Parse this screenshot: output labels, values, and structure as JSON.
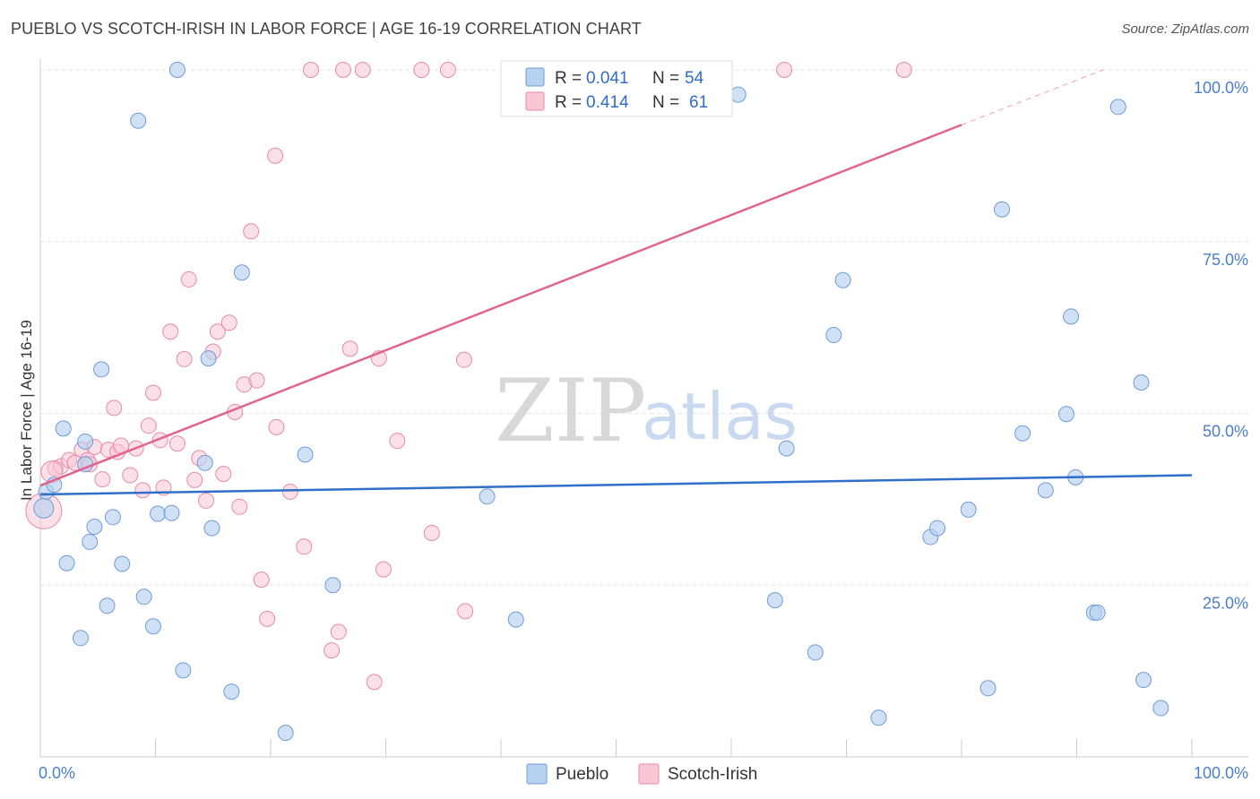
{
  "header": {
    "title": "PUEBLO VS SCOTCH-IRISH IN LABOR FORCE | AGE 16-19 CORRELATION CHART",
    "source": "Source: ZipAtlas.com"
  },
  "watermark": {
    "zip": "ZIP",
    "atlas": "atlas"
  },
  "colors": {
    "pueblo_fill": "#b7d1f0",
    "pueblo_stroke": "#6f9bd6",
    "pueblo_line": "#2e6fc9",
    "scotch_fill": "#f8c6d5",
    "scotch_stroke": "#e88aa6",
    "scotch_line": "#e2638e"
  },
  "legend": {
    "series": [
      {
        "r_label": "R = ",
        "r_value": "0.041",
        "n_label": "N = ",
        "n_value": "54"
      },
      {
        "r_label": "R = ",
        "r_value": "0.414",
        "n_label": "N = ",
        "n_value": "61"
      }
    ]
  },
  "chart_data": {
    "type": "scatter",
    "title": "PUEBLO VS SCOTCH-IRISH IN LABOR FORCE | AGE 16-19 CORRELATION CHART",
    "xlabel": "",
    "ylabel": "In Labor Force | Age 16-19",
    "xlim": [
      0,
      100
    ],
    "ylim": [
      0,
      100
    ],
    "x_tick_labels": [
      "0.0%",
      "100.0%"
    ],
    "y_ticks": [
      25,
      50,
      75,
      100
    ],
    "y_tick_labels": [
      "25.0%",
      "50.0%",
      "75.0%",
      "100.0%"
    ],
    "grid": true,
    "series": [
      {
        "name": "Pueblo",
        "r": 0.041,
        "n": 54,
        "trend": {
          "x0": 0,
          "y0": 38.2,
          "x1": 100,
          "y1": 41.0
        },
        "points": [
          [
            0.3,
            36.2
          ],
          [
            0.5,
            38.6
          ],
          [
            1.2,
            39.6
          ],
          [
            2.0,
            47.8
          ],
          [
            2.3,
            28.2
          ],
          [
            3.5,
            17.3
          ],
          [
            3.9,
            42.6
          ],
          [
            3.9,
            45.9
          ],
          [
            4.3,
            31.3
          ],
          [
            4.7,
            33.5
          ],
          [
            5.3,
            56.4
          ],
          [
            5.8,
            22.0
          ],
          [
            6.3,
            34.9
          ],
          [
            7.1,
            28.1
          ],
          [
            8.5,
            92.6
          ],
          [
            9.0,
            23.3
          ],
          [
            9.8,
            19.0
          ],
          [
            10.2,
            35.4
          ],
          [
            11.4,
            35.5
          ],
          [
            11.9,
            100.0
          ],
          [
            12.4,
            12.6
          ],
          [
            14.3,
            42.8
          ],
          [
            14.6,
            58.0
          ],
          [
            14.9,
            33.3
          ],
          [
            16.6,
            9.5
          ],
          [
            17.5,
            70.5
          ],
          [
            21.3,
            3.5
          ],
          [
            23.0,
            44.0
          ],
          [
            25.4,
            25.0
          ],
          [
            38.8,
            37.9
          ],
          [
            41.3,
            20.0
          ],
          [
            60.6,
            96.4
          ],
          [
            63.8,
            22.8
          ],
          [
            64.8,
            44.9
          ],
          [
            67.3,
            15.2
          ],
          [
            68.9,
            61.4
          ],
          [
            69.7,
            69.4
          ],
          [
            72.8,
            5.7
          ],
          [
            77.3,
            32.0
          ],
          [
            77.9,
            33.3
          ],
          [
            80.6,
            36.0
          ],
          [
            82.3,
            10.0
          ],
          [
            83.5,
            79.7
          ],
          [
            85.3,
            47.1
          ],
          [
            87.3,
            38.8
          ],
          [
            89.1,
            49.9
          ],
          [
            89.5,
            64.1
          ],
          [
            89.9,
            40.7
          ],
          [
            91.5,
            21.0
          ],
          [
            91.8,
            21.0
          ],
          [
            93.6,
            94.6
          ],
          [
            95.6,
            54.5
          ],
          [
            95.8,
            11.2
          ],
          [
            97.3,
            7.1
          ]
        ]
      },
      {
        "name": "Scotch-Irish",
        "r": 0.414,
        "n": 61,
        "trend": {
          "x0": 0,
          "y0": 39.5,
          "x1": 80,
          "y1": 92.0,
          "dashed_to_x": 100,
          "dashed_to_y": 105.0
        },
        "points": [
          [
            0.3,
            35.8
          ],
          [
            1.3,
            42.0
          ],
          [
            1.8,
            42.3
          ],
          [
            2.5,
            43.2
          ],
          [
            3.0,
            42.8
          ],
          [
            3.6,
            44.7
          ],
          [
            4.1,
            43.2
          ],
          [
            4.3,
            42.6
          ],
          [
            4.7,
            45.1
          ],
          [
            5.4,
            40.4
          ],
          [
            5.9,
            44.7
          ],
          [
            6.4,
            50.8
          ],
          [
            6.7,
            44.4
          ],
          [
            7.0,
            45.3
          ],
          [
            7.8,
            41.0
          ],
          [
            8.3,
            44.9
          ],
          [
            8.9,
            38.8
          ],
          [
            9.4,
            48.2
          ],
          [
            9.8,
            53.0
          ],
          [
            10.4,
            46.1
          ],
          [
            10.7,
            39.2
          ],
          [
            11.3,
            61.9
          ],
          [
            11.9,
            45.6
          ],
          [
            12.5,
            57.9
          ],
          [
            12.9,
            69.5
          ],
          [
            13.4,
            40.3
          ],
          [
            13.8,
            43.5
          ],
          [
            14.4,
            37.3
          ],
          [
            15.0,
            59.0
          ],
          [
            15.4,
            61.9
          ],
          [
            15.9,
            41.2
          ],
          [
            16.4,
            63.2
          ],
          [
            16.9,
            50.2
          ],
          [
            17.3,
            36.4
          ],
          [
            17.7,
            54.2
          ],
          [
            18.3,
            76.5
          ],
          [
            18.8,
            54.8
          ],
          [
            19.2,
            25.8
          ],
          [
            19.7,
            20.1
          ],
          [
            20.4,
            87.5
          ],
          [
            20.5,
            48.0
          ],
          [
            21.7,
            38.6
          ],
          [
            22.9,
            30.6
          ],
          [
            23.5,
            100.0
          ],
          [
            25.3,
            15.5
          ],
          [
            25.9,
            18.2
          ],
          [
            26.3,
            100.0
          ],
          [
            26.9,
            59.4
          ],
          [
            28.0,
            100.0
          ],
          [
            29.0,
            10.9
          ],
          [
            29.4,
            58.0
          ],
          [
            29.8,
            27.3
          ],
          [
            31.0,
            46.0
          ],
          [
            33.1,
            100.0
          ],
          [
            34.0,
            32.6
          ],
          [
            35.4,
            100.0
          ],
          [
            36.8,
            57.8
          ],
          [
            36.9,
            21.2
          ],
          [
            64.6,
            100.0
          ],
          [
            75.0,
            100.0
          ],
          [
            1.0,
            41.5
          ]
        ]
      }
    ]
  },
  "bottom_legend": {
    "items": [
      {
        "label": "Pueblo"
      },
      {
        "label": "Scotch-Irish"
      }
    ]
  }
}
